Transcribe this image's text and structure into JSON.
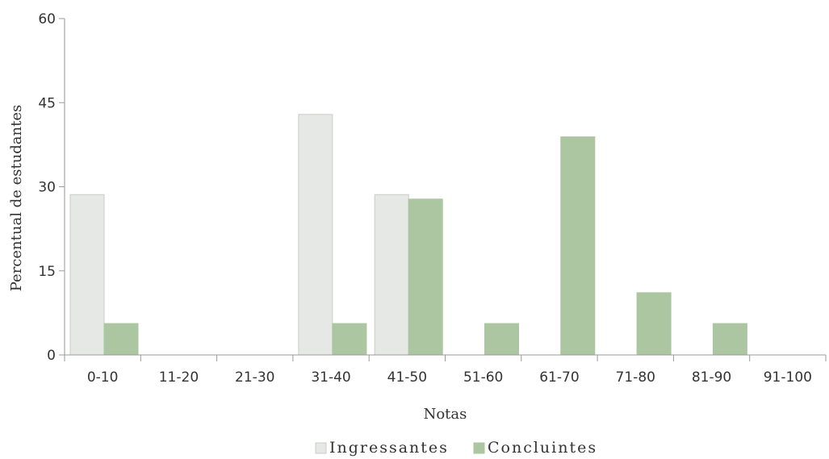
{
  "chart_data": {
    "type": "bar",
    "title": "",
    "xlabel": "Notas",
    "ylabel": "Percentual de estudantes",
    "ylim": [
      0,
      60
    ],
    "yticks": [
      0,
      15,
      30,
      45,
      60
    ],
    "categories": [
      "0-10",
      "11-20",
      "21-30",
      "31-40",
      "41-50",
      "51-60",
      "61-70",
      "71-80",
      "81-90",
      "91-100"
    ],
    "series": [
      {
        "name": "Ingressantes",
        "color": "#e6e8e5",
        "stroke": "#c9ccc8",
        "values": [
          28.6,
          0,
          0,
          42.9,
          28.6,
          0,
          0,
          0,
          0,
          0
        ]
      },
      {
        "name": "Concluintes",
        "color": "#abc6a1",
        "stroke": "#abc6a1",
        "values": [
          5.6,
          0,
          0,
          5.6,
          27.8,
          5.6,
          38.9,
          11.1,
          5.6,
          0
        ]
      }
    ],
    "legend_position": "bottom",
    "grid": false
  }
}
